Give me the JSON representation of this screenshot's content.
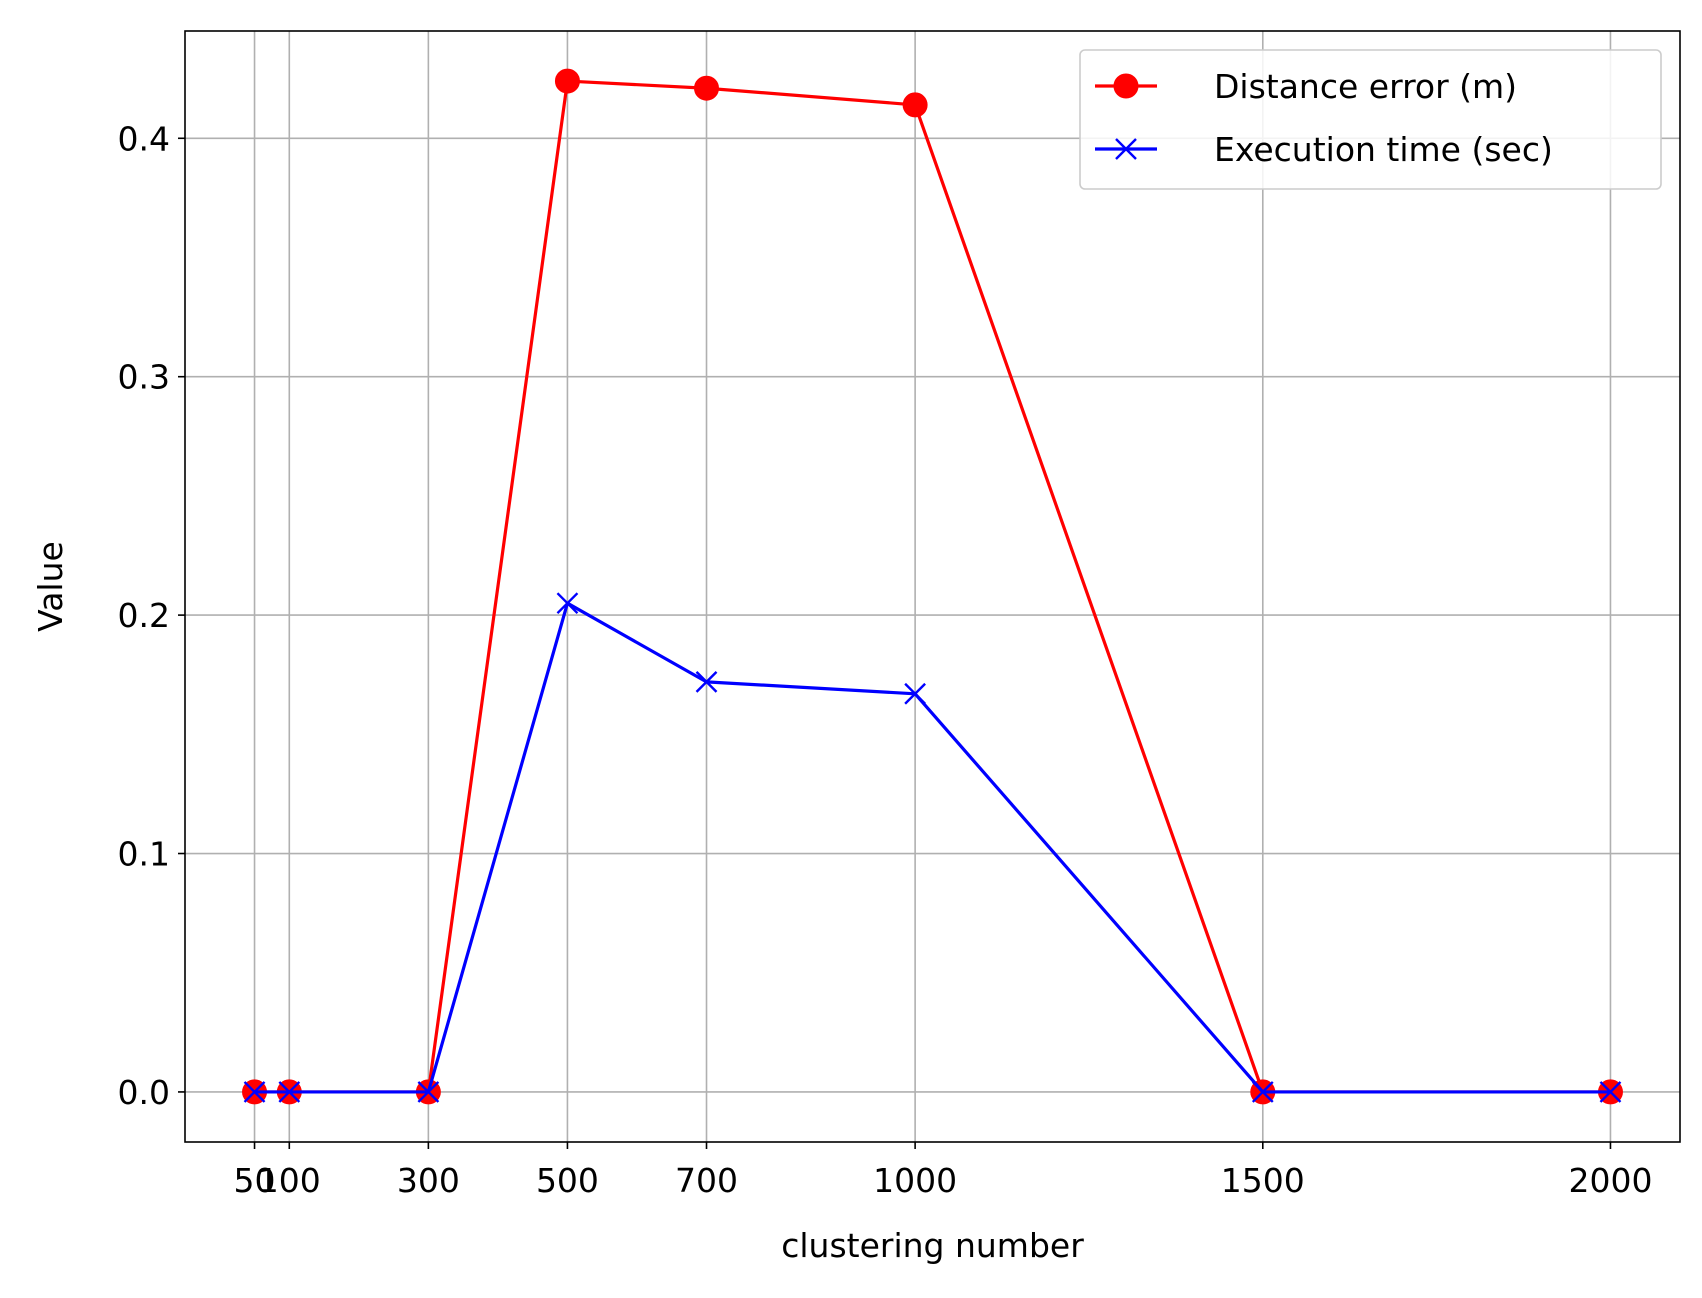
{
  "chart_data": {
    "type": "line",
    "xlabel": "clustering number",
    "ylabel": "Value",
    "x": [
      50,
      100,
      300,
      500,
      700,
      1000,
      1500,
      2000
    ],
    "x_ticks": [
      50,
      100,
      300,
      500,
      700,
      1000,
      1500,
      2000
    ],
    "x_tick_labels": [
      "50",
      "100",
      "300",
      "500",
      "700",
      "1000",
      "1500",
      "2000"
    ],
    "xlim": [
      -50,
      2100
    ],
    "y_ticks": [
      0.0,
      0.1,
      0.2,
      0.3,
      0.4
    ],
    "y_tick_labels": [
      "0.0",
      "0.1",
      "0.2",
      "0.3",
      "0.4"
    ],
    "ylim": [
      -0.021,
      0.445
    ],
    "grid": true,
    "legend_position": "top-right",
    "series": [
      {
        "name": "Distance error (m)",
        "color": "#ff0000",
        "marker": "circle",
        "values": [
          0.0,
          0.0,
          0.0,
          0.424,
          0.421,
          0.414,
          0.0,
          0.0
        ]
      },
      {
        "name": "Execution time (sec)",
        "color": "#0000ff",
        "marker": "x",
        "values": [
          0.0,
          0.0,
          0.0,
          0.205,
          0.172,
          0.167,
          0.0,
          0.0
        ]
      }
    ]
  }
}
